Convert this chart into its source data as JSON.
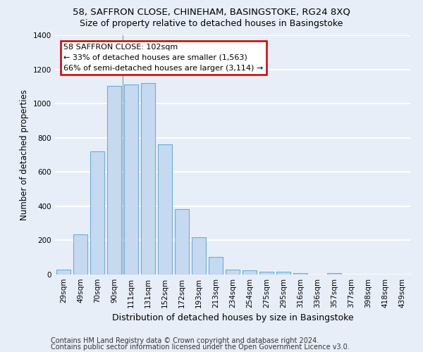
{
  "title1": "58, SAFFRON CLOSE, CHINEHAM, BASINGSTOKE, RG24 8XQ",
  "title2": "Size of property relative to detached houses in Basingstoke",
  "xlabel": "Distribution of detached houses by size in Basingstoke",
  "ylabel": "Number of detached properties",
  "categories": [
    "29sqm",
    "49sqm",
    "70sqm",
    "90sqm",
    "111sqm",
    "131sqm",
    "152sqm",
    "172sqm",
    "193sqm",
    "213sqm",
    "234sqm",
    "254sqm",
    "275sqm",
    "295sqm",
    "316sqm",
    "336sqm",
    "357sqm",
    "377sqm",
    "398sqm",
    "418sqm",
    "439sqm"
  ],
  "values": [
    30,
    235,
    720,
    1105,
    1110,
    1120,
    760,
    385,
    220,
    105,
    30,
    25,
    18,
    15,
    8,
    0,
    8,
    0,
    0,
    0,
    0
  ],
  "bar_color": "#c5d9f0",
  "bar_edge_color": "#6baed6",
  "annotation_text": "58 SAFFRON CLOSE: 102sqm\n← 33% of detached houses are smaller (1,563)\n66% of semi-detached houses are larger (3,114) →",
  "ylim": [
    0,
    1400
  ],
  "yticks": [
    0,
    200,
    400,
    600,
    800,
    1000,
    1200,
    1400
  ],
  "footer1": "Contains HM Land Registry data © Crown copyright and database right 2024.",
  "footer2": "Contains public sector information licensed under the Open Government Licence v3.0.",
  "bg_color": "#e8eef8",
  "plot_bg_color": "#e8eef8",
  "grid_color": "#ffffff",
  "title1_fontsize": 9.5,
  "title2_fontsize": 9,
  "xlabel_fontsize": 9,
  "ylabel_fontsize": 8.5,
  "tick_fontsize": 7.5,
  "annot_fontsize": 8,
  "footer_fontsize": 7
}
